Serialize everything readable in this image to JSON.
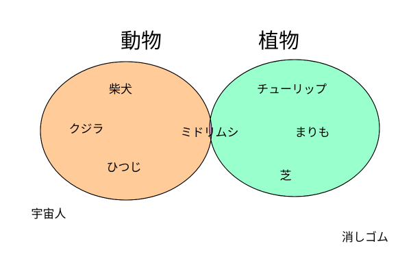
{
  "sets": {
    "left": {
      "title": "動物",
      "fill": "#ffcc99",
      "items": [
        "柴犬",
        "クジラ",
        "ひつじ"
      ]
    },
    "right": {
      "title": "植物",
      "fill": "#99ffcc",
      "items": [
        "チューリップ",
        "まりも",
        "芝"
      ]
    },
    "intersection": {
      "fill": "#ff99ff",
      "items": [
        "ミドリムシ"
      ]
    }
  },
  "outside": {
    "left": "宇宙人",
    "right": "消しゴム"
  },
  "colors": {
    "stroke": "#000000",
    "text": "#000000",
    "background": "#ffffff"
  }
}
